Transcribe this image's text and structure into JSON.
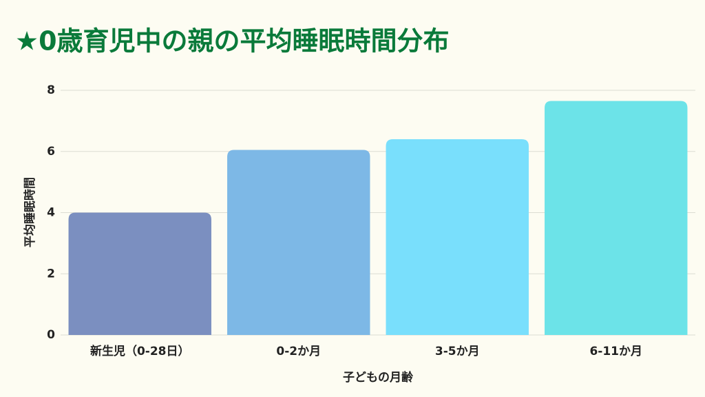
{
  "chart_data": {
    "type": "bar",
    "title": "★0歳育児中の親の平均睡眠時間分布",
    "x_label": "子どもの月齢",
    "y_label": "平均睡眠時間",
    "categories": [
      "新生児（0-28日）",
      "0-2か月",
      "3-5か月",
      "6-11か月"
    ],
    "values": [
      4,
      6.05,
      6.4,
      7.65
    ],
    "colors": [
      "#7b8fc0",
      "#7db8e6",
      "#79dffc",
      "#6ce3e8"
    ],
    "ylim": [
      0,
      8
    ],
    "yticks": [
      0,
      2,
      4,
      6,
      8
    ],
    "grid": true
  }
}
